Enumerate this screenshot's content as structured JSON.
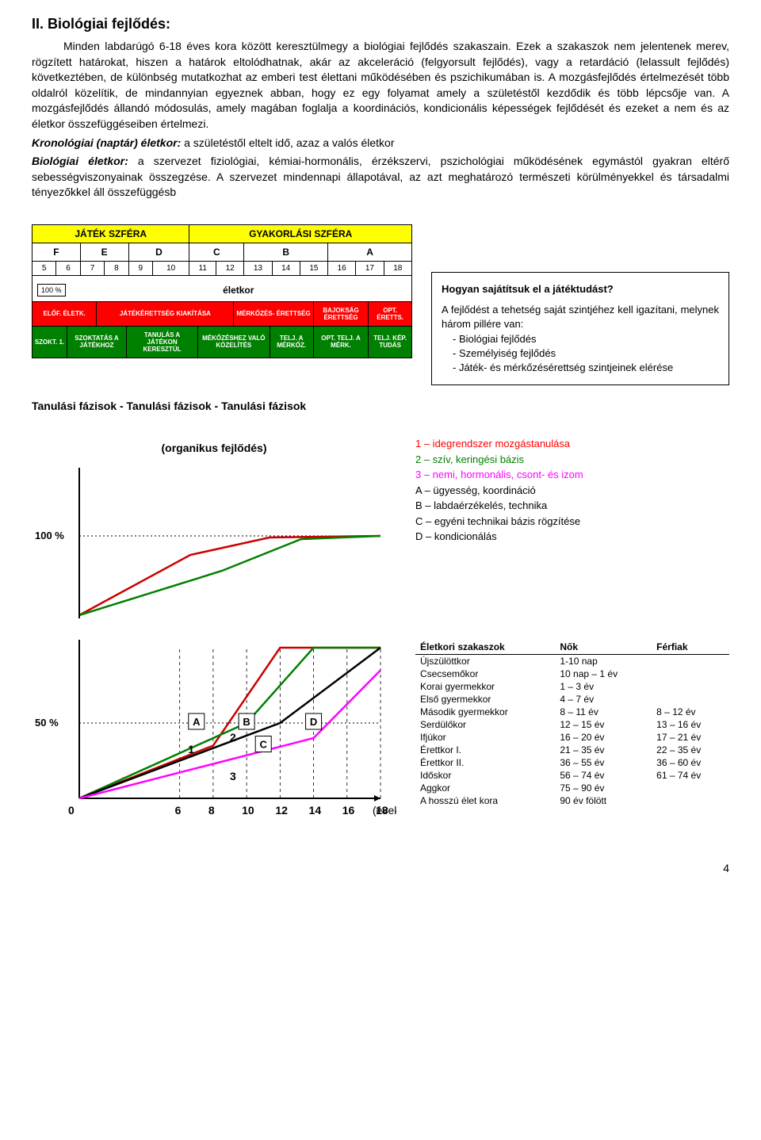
{
  "heading": "II. Biológiai fejlődés:",
  "para1": "Minden labdarúgó 6-18 éves kora között keresztülmegy a biológiai fejlődés szakaszain. Ezek a szakaszok nem jelentenek merev, rögzített határokat, hiszen a határok eltolódhatnak, akár az akceleráció (felgyorsult fejlődés), vagy a retardáció (lelassult fejlődés) következtében, de különbség mutatkozhat az emberi test élettani működésében és pszichikumában is. A mozgásfejlődés értelmezését több oldalról közelítik, de mindannyian egyeznek abban, hogy ez egy folyamat amely a születéstől kezdődik és több lépcsője van. A mozgásfejlődés állandó módosulás, amely magában foglalja a koordinációs, kondicionális képességek fejlődését és ezeket a nem és az életkor összefüggéseiben értelmezi.",
  "krono_label": "Kronológiai (naptár) életkor:",
  "krono_text": " a születéstől eltelt idő, azaz a valós életkor",
  "bio_label": "Biológiai életkor:",
  "bio_text": " a szervezet fiziológiai, kémiai-hormonális, érzékszervi, pszichológiai működésének egymástól gyakran eltérő sebességviszonyainak összegzése. A szervezet mindennapi állapotával, az azt meghatározó természeti körülményekkel és társadalmi tényezőkkel áll összefüggésb",
  "sphere": {
    "row1": [
      "JÁTÉK SZFÉRA",
      "GYAKORLÁSI SZFÉRA"
    ],
    "row2": [
      "F",
      "E",
      "D",
      "C",
      "B",
      "A"
    ],
    "row3": [
      "5",
      "6",
      "7",
      "8",
      "9",
      "10",
      "11",
      "12",
      "13",
      "14",
      "15",
      "16",
      "17",
      "18"
    ],
    "eletkor_left": "100 %",
    "eletkor": "életkor",
    "red_row": [
      "ELŐF. ÉLETK.",
      "JÁTÉKÉRETTSÉG KIAKÍTÁSA",
      "MÉRKŐZÉS- ÉRETTSÉG",
      "BAJOKSÁG ÉRETTSÉG",
      "OPT. ÉRETTS."
    ],
    "green_row": [
      "SZOKT. 1.",
      "SZOKTATÁS A JÁTÉKHOZ",
      "TANULÁS A JÁTÉKON KERESZTÜL",
      "MÉKŐZÉSHEZ VALÓ KÖZELÍTÉS",
      "TELJ. A MÉRKŐZ.",
      "OPT. TELJ. A MÉRK.",
      "TELJ. KÉP. TUDÁS"
    ]
  },
  "sidebox": {
    "title": "Hogyan sajátítsuk el a játéktudást?",
    "text": "A fejlődést a tehetség saját szintjéhez kell igazítani, melynek három pillére van:",
    "items": [
      "Biológiai fejlődés",
      "Személyiség fejlődés",
      "Játék- és mérkőzésérettség szintjeinek elérése"
    ]
  },
  "phases": "Tanulási fázisok    -    Tanulási fázisok    -        Tanulási fázisok",
  "chart": {
    "title": "(organikus fejlődés)",
    "y100": "100 %",
    "y50": "50 %",
    "labels": [
      "A",
      "B",
      "C",
      "D"
    ],
    "nums": [
      "1",
      "2",
      "3"
    ],
    "x_zero": "0",
    "x_ticks": [
      "6",
      "8",
      "10",
      "12",
      "14",
      "16",
      "18"
    ],
    "x_unit": "(évek)",
    "background": "#ffffff",
    "lines": {
      "red": {
        "color": "#cc0000",
        "points": [
          [
            0,
            0
          ],
          [
            8,
            35
          ],
          [
            12,
            100
          ],
          [
            18,
            100
          ]
        ]
      },
      "green": {
        "color": "#008000",
        "points": [
          [
            0,
            0
          ],
          [
            10,
            50
          ],
          [
            14,
            100
          ],
          [
            18,
            100
          ]
        ]
      },
      "black": {
        "color": "#000000",
        "points": [
          [
            0,
            0
          ],
          [
            12,
            50
          ],
          [
            18,
            100
          ]
        ]
      },
      "pink": {
        "color": "#ff00ff",
        "points": [
          [
            0,
            0
          ],
          [
            14,
            40
          ],
          [
            18,
            85
          ]
        ]
      }
    }
  },
  "legend": [
    {
      "t": "1 – idegrendszer mozgástanulása",
      "c": "c1"
    },
    {
      "t": "2 – szív, keringési bázis",
      "c": "c2"
    },
    {
      "t": "3 – nemi, hormonális, csont- és izom",
      "c": "c3"
    },
    {
      "t": "A – ügyesség, koordináció",
      "c": ""
    },
    {
      "t": "B – labdaérzékelés, technika",
      "c": ""
    },
    {
      "t": "C – egyéni technikai bázis rögzítése",
      "c": ""
    },
    {
      "t": "D – kondicionálás",
      "c": ""
    }
  ],
  "age_table": {
    "head": [
      "Életkori szakaszok",
      "Nők",
      "Férfiak"
    ],
    "rows": [
      [
        "Újszülöttkor",
        "1-10 nap",
        ""
      ],
      [
        "Csecsemőkor",
        "10 nap – 1 év",
        ""
      ],
      [
        "Korai gyermekkor",
        "1 – 3 év",
        ""
      ],
      [
        "Első gyermekkor",
        "4 – 7 év",
        ""
      ],
      [
        "Második gyermekkor",
        "8 – 11 év",
        "8 – 12 év"
      ],
      [
        "Serdülőkor",
        "12 – 15 év",
        "13 – 16 év"
      ],
      [
        "Ifjúkor",
        "16 – 20 év",
        "17 – 21 év"
      ],
      [
        "Érettkor I.",
        "21 – 35 év",
        "22 – 35 év"
      ],
      [
        "Érettkor II.",
        "36 – 55 év",
        "36 – 60 év"
      ],
      [
        "Időskor",
        "56 – 74 év",
        "61 – 74 év"
      ],
      [
        "Aggkor",
        "75 – 90 év",
        ""
      ],
      [
        "A hosszú élet kora",
        "90 év fölött",
        ""
      ]
    ]
  },
  "page_num": "4"
}
